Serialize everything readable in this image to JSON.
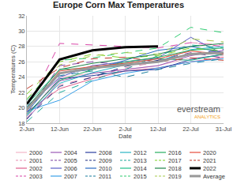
{
  "chart_data": {
    "type": "line",
    "title": "Europe Corn Max Temperatures",
    "x_label": "Date",
    "y_label": "Temperatures (C)",
    "categories": [
      "2-Jun",
      "12-Jun",
      "22-Jun",
      "2-Jul",
      "12-Jul",
      "22-Jul",
      "31-Jul"
    ],
    "ylim": [
      18,
      32
    ],
    "yticks": [
      18,
      20,
      22,
      24,
      26,
      28,
      30,
      32
    ],
    "grid": true,
    "legend": "bottom",
    "annotations": [
      "everstream",
      "ANALYTICS"
    ],
    "series": [
      {
        "name": "2000",
        "color": "#f4b6c8",
        "line_style": "solid",
        "values": [
          19.0,
          24.0,
          24.5,
          25.0,
          25.5,
          26.5,
          26.8
        ]
      },
      {
        "name": "2001",
        "color": "#e88bb0",
        "line_style": "dashed",
        "values": [
          18.8,
          23.0,
          24.0,
          25.2,
          26.0,
          28.5,
          28.2
        ]
      },
      {
        "name": "2002",
        "color": "#e0608c",
        "line_style": "solid",
        "values": [
          19.5,
          22.5,
          23.8,
          24.8,
          25.2,
          26.0,
          26.6
        ]
      },
      {
        "name": "2003",
        "color": "#d946a8",
        "line_style": "dashed",
        "values": [
          19.8,
          28.4,
          28.2,
          28.0,
          27.8,
          28.5,
          28.0
        ]
      },
      {
        "name": "2004",
        "color": "#9b59b6",
        "line_style": "solid",
        "values": [
          18.5,
          23.5,
          24.5,
          25.0,
          25.5,
          26.8,
          27.5
        ]
      },
      {
        "name": "2005",
        "color": "#7b3fa0",
        "line_style": "dashed",
        "values": [
          19.2,
          25.5,
          26.0,
          25.6,
          26.2,
          27.2,
          26.5
        ]
      },
      {
        "name": "2006",
        "color": "#5b5fc7",
        "line_style": "solid",
        "values": [
          20.0,
          24.0,
          25.5,
          26.0,
          26.5,
          29.2,
          27.0
        ]
      },
      {
        "name": "2007",
        "color": "#3aa0e8",
        "line_style": "solid",
        "values": [
          19.6,
          21.0,
          23.5,
          24.5,
          25.2,
          26.0,
          26.4
        ]
      },
      {
        "name": "2008",
        "color": "#2c3e9e",
        "line_style": "solid",
        "values": [
          19.0,
          23.8,
          24.2,
          24.8,
          25.0,
          26.3,
          27.0
        ]
      },
      {
        "name": "2009",
        "color": "#1f2d80",
        "line_style": "dashed",
        "values": [
          18.6,
          22.8,
          24.0,
          25.4,
          26.2,
          27.0,
          27.6
        ]
      },
      {
        "name": "2010",
        "color": "#2b6cc4",
        "line_style": "solid",
        "values": [
          19.4,
          24.5,
          25.0,
          26.2,
          27.5,
          28.0,
          27.2
        ]
      },
      {
        "name": "2011",
        "color": "#1a7f9e",
        "line_style": "dashed",
        "values": [
          20.2,
          24.2,
          24.8,
          24.0,
          25.0,
          25.8,
          26.4
        ]
      },
      {
        "name": "2012",
        "color": "#2bb5c4",
        "line_style": "solid",
        "values": [
          19.0,
          23.2,
          24.6,
          25.6,
          26.0,
          27.6,
          28.0
        ]
      },
      {
        "name": "2013",
        "color": "#1aa89a",
        "line_style": "dashed",
        "values": [
          18.2,
          22.0,
          23.6,
          25.0,
          26.8,
          28.2,
          27.8
        ]
      },
      {
        "name": "2014",
        "color": "#1fbf8a",
        "line_style": "solid",
        "values": [
          20.4,
          25.0,
          25.2,
          25.8,
          26.4,
          26.2,
          27.0
        ]
      },
      {
        "name": "2015",
        "color": "#2ecc71",
        "line_style": "dashed",
        "values": [
          21.0,
          26.2,
          26.5,
          27.2,
          27.8,
          30.5,
          29.8
        ]
      },
      {
        "name": "2016",
        "color": "#27ae60",
        "line_style": "solid",
        "values": [
          19.2,
          23.6,
          25.0,
          26.0,
          26.6,
          27.5,
          27.8
        ]
      },
      {
        "name": "2017",
        "color": "#7ed321",
        "line_style": "dashed",
        "values": [
          21.8,
          26.0,
          27.0,
          26.5,
          26.8,
          27.8,
          27.4
        ]
      },
      {
        "name": "2018",
        "color": "#1e8449",
        "line_style": "solid",
        "values": [
          20.0,
          25.0,
          25.8,
          26.4,
          27.0,
          28.0,
          28.4
        ]
      },
      {
        "name": "2019",
        "color": "#a8c94a",
        "line_style": "dashed",
        "values": [
          21.2,
          25.6,
          26.8,
          27.2,
          27.0,
          29.0,
          28.6
        ]
      },
      {
        "name": "2020",
        "color": "#e74c3c",
        "line_style": "solid",
        "values": [
          19.6,
          24.8,
          25.4,
          25.8,
          26.4,
          27.4,
          27.0
        ]
      },
      {
        "name": "2021",
        "color": "#c0392b",
        "line_style": "dashed",
        "values": [
          22.5,
          25.2,
          26.4,
          26.6,
          26.0,
          26.5,
          26.2
        ]
      },
      {
        "name": "2022",
        "color": "#000000",
        "line_style": "thick",
        "values": [
          20.5,
          26.3,
          27.5,
          27.9,
          28.0,
          null,
          null
        ]
      },
      {
        "name": "Average",
        "color": "#999999",
        "line_style": "thick",
        "values": [
          19.8,
          24.5,
          25.2,
          25.6,
          26.0,
          27.0,
          27.2
        ]
      }
    ]
  }
}
